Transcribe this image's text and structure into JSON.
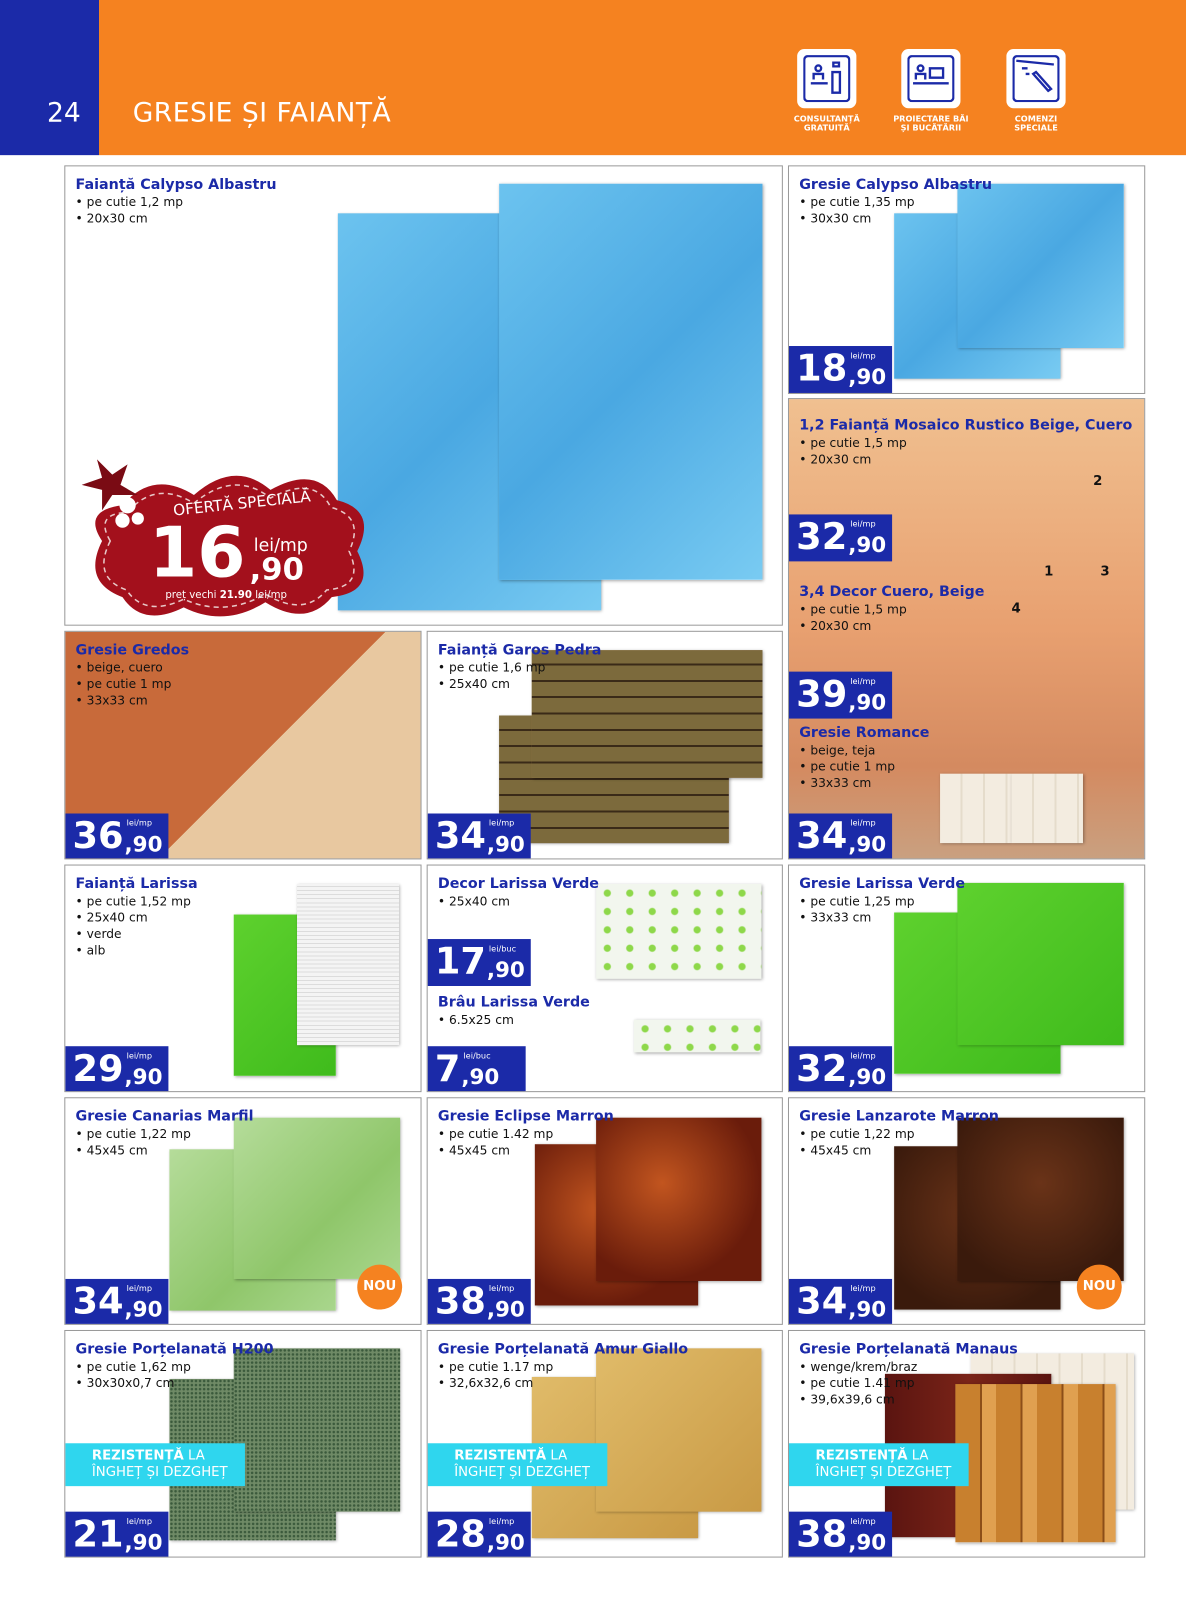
{
  "header": {
    "page_number": "24",
    "title": "GRESIE ȘI FAIANȚĂ",
    "services": [
      {
        "icon": "consultant-icon",
        "label": "CONSULTANȚĂ GRATUITĂ"
      },
      {
        "icon": "design-computer-icon",
        "label": "PROIECTARE BĂI ȘI BUCĂTĂRII"
      },
      {
        "icon": "pencil-order-icon",
        "label": "COMENZI SPECIALE"
      }
    ]
  },
  "colors": {
    "brand_blue": "#1b2aa8",
    "orange": "#f58220",
    "offer_red": "#a3101c",
    "frost_cyan": "#2fd6ee"
  },
  "special_offer": {
    "label": "OFERTĂ SPECIALĂ",
    "price_int": "16",
    "price_cents": ",90",
    "unit": "lei/mp",
    "old_price_prefix": "preț vechi",
    "old_price": "21.90",
    "old_price_unit": "lei/mp"
  },
  "frost_badge": {
    "strong": "REZISTENȚĂ",
    "rest1": "LA",
    "rest2": "ÎNGHEȚ ȘI DEZGHEȚ"
  },
  "new_badge": "NOU",
  "products": [
    {
      "title": "Faianță Calypso Albastru",
      "bullets": [
        "pe cutie 1,2 mp",
        "20x30 cm"
      ]
    },
    {
      "title": "Gresie Calypso Albastru",
      "bullets": [
        "pe cutie 1,35 mp",
        "30x30 cm"
      ],
      "price": {
        "int": "18",
        "cents": ",90",
        "unit": "lei/mp"
      }
    },
    {
      "title": "1,2 Faianță Mosaico Rustico Beige, Cuero",
      "bullets": [
        "pe cutie 1,5 mp",
        "20x30 cm"
      ],
      "price": {
        "int": "32",
        "cents": ",90",
        "unit": "lei/mp"
      }
    },
    {
      "title": "3,4 Decor Cuero, Beige",
      "bullets": [
        "pe cutie 1,5 mp",
        "20x30 cm"
      ],
      "price": {
        "int": "39",
        "cents": ",90",
        "unit": "lei/mp"
      }
    },
    {
      "title": "Gresie Romance",
      "bullets": [
        "beige, teja",
        "pe cutie 1 mp",
        "33x33 cm"
      ],
      "price": {
        "int": "34",
        "cents": ",90",
        "unit": "lei/mp"
      }
    },
    {
      "title": "Gresie Gredos",
      "bullets": [
        "beige, cuero",
        "pe cutie 1 mp",
        "33x33 cm"
      ],
      "price": {
        "int": "36",
        "cents": ",90",
        "unit": "lei/mp"
      }
    },
    {
      "title": "Faianță Garos Pedra",
      "bullets": [
        "pe cutie 1,6 mp",
        "25x40 cm"
      ],
      "price": {
        "int": "34",
        "cents": ",90",
        "unit": "lei/mp"
      }
    },
    {
      "title": "Faianță Larissa",
      "bullets": [
        "pe cutie 1,52 mp",
        "25x40 cm",
        "verde",
        "alb"
      ],
      "price": {
        "int": "29",
        "cents": ",90",
        "unit": "lei/mp"
      }
    },
    {
      "title": "Decor Larissa Verde",
      "bullets": [
        "25x40 cm"
      ],
      "price": {
        "int": "17",
        "cents": ",90",
        "unit": "lei/buc"
      }
    },
    {
      "title": "Brâu Larissa Verde",
      "bullets": [
        "6.5x25 cm"
      ],
      "price": {
        "int": "7",
        "cents": ",90",
        "unit": "lei/buc"
      }
    },
    {
      "title": "Gresie Larissa Verde",
      "bullets": [
        "pe cutie 1,25 mp",
        "33x33 cm"
      ],
      "price": {
        "int": "32",
        "cents": ",90",
        "unit": "lei/mp"
      }
    },
    {
      "title": "Gresie Canarias Marfil",
      "bullets": [
        "pe cutie 1,22 mp",
        "45x45 cm"
      ],
      "price": {
        "int": "34",
        "cents": ",90",
        "unit": "lei/mp"
      },
      "new": true
    },
    {
      "title": "Gresie Eclipse Marron",
      "bullets": [
        "pe cutie 1.42 mp",
        "45x45 cm"
      ],
      "price": {
        "int": "38",
        "cents": ",90",
        "unit": "lei/mp"
      }
    },
    {
      "title": "Gresie Lanzarote Marron",
      "bullets": [
        "pe cutie 1,22 mp",
        "45x45 cm"
      ],
      "price": {
        "int": "34",
        "cents": ",90",
        "unit": "lei/mp"
      },
      "new": true
    },
    {
      "title": "Gresie Porțelanată H200",
      "bullets": [
        "pe cutie 1,62 mp",
        "30x30x0,7 cm"
      ],
      "price": {
        "int": "21",
        "cents": ",90",
        "unit": "lei/mp"
      },
      "frost": true
    },
    {
      "title": "Gresie Porțelanată Amur Giallo",
      "bullets": [
        "pe cutie 1.17 mp",
        "32,6x32,6 cm"
      ],
      "price": {
        "int": "28",
        "cents": ",90",
        "unit": "lei/mp"
      },
      "frost": true
    },
    {
      "title": "Gresie Porțelanată Manaus",
      "bullets": [
        "wenge/krem/braz",
        "pe cutie 1.41 mp",
        "39,6x39,6 cm"
      ],
      "price": {
        "int": "38",
        "cents": ",90",
        "unit": "lei/mp"
      },
      "frost": true
    }
  ],
  "mosaic_labels": [
    "1",
    "2",
    "3",
    "4"
  ]
}
